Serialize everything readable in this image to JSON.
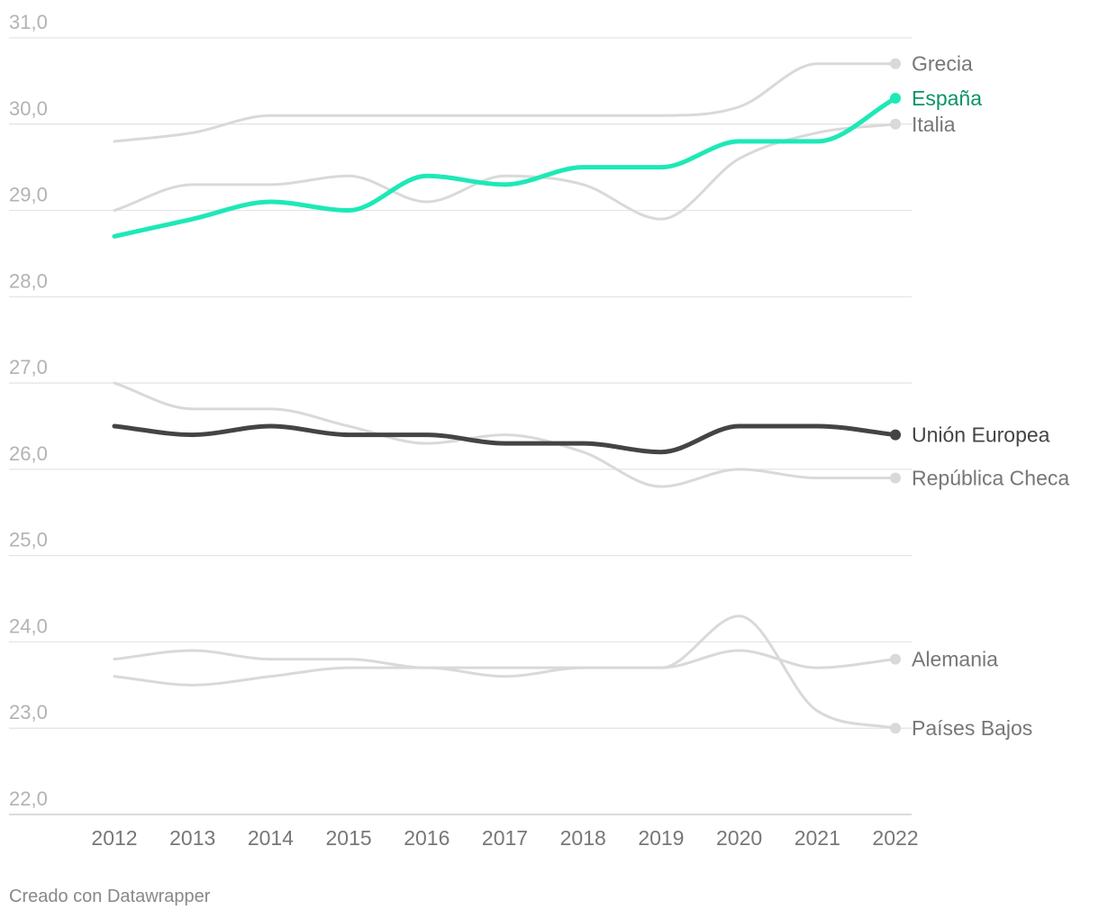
{
  "chart_data": {
    "type": "line",
    "x": [
      "2012",
      "2013",
      "2014",
      "2015",
      "2016",
      "2017",
      "2018",
      "2019",
      "2020",
      "2021",
      "2022"
    ],
    "yticks": [
      "22,0",
      "23,0",
      "24,0",
      "25,0",
      "26,0",
      "27,0",
      "28,0",
      "29,0",
      "30,0",
      "31,0"
    ],
    "ylim": [
      22,
      31
    ],
    "grid": true,
    "series": [
      {
        "name": "Grecia",
        "color": "#d9d9d9",
        "label_color": "#777777",
        "emphasis": false,
        "values": [
          29.8,
          29.9,
          30.1,
          30.1,
          30.1,
          30.1,
          30.1,
          30.1,
          30.2,
          30.7,
          30.7
        ]
      },
      {
        "name": "Italia",
        "color": "#d9d9d9",
        "label_color": "#777777",
        "emphasis": false,
        "values": [
          29.0,
          29.3,
          29.3,
          29.4,
          29.1,
          29.4,
          29.3,
          28.9,
          29.6,
          29.9,
          30.0
        ]
      },
      {
        "name": "República Checa",
        "color": "#d9d9d9",
        "label_color": "#777777",
        "emphasis": false,
        "values": [
          27.0,
          26.7,
          26.7,
          26.5,
          26.3,
          26.4,
          26.2,
          25.8,
          26.0,
          25.9,
          25.9
        ]
      },
      {
        "name": "Alemania",
        "color": "#d9d9d9",
        "label_color": "#777777",
        "emphasis": false,
        "values": [
          23.8,
          23.9,
          23.8,
          23.8,
          23.7,
          23.7,
          23.7,
          23.7,
          23.9,
          23.7,
          23.8
        ]
      },
      {
        "name": "Países Bajos",
        "color": "#d9d9d9",
        "label_color": "#777777",
        "emphasis": false,
        "values": [
          23.6,
          23.5,
          23.6,
          23.7,
          23.7,
          23.6,
          23.7,
          23.7,
          24.3,
          23.2,
          23.0
        ]
      },
      {
        "name": "Unión Europea",
        "color": "#444444",
        "label_color": "#444444",
        "emphasis": true,
        "values": [
          26.5,
          26.4,
          26.5,
          26.4,
          26.4,
          26.3,
          26.3,
          26.2,
          26.5,
          26.5,
          26.4
        ]
      },
      {
        "name": "España",
        "color": "#1de9b6",
        "label_color": "#0b9466",
        "emphasis": true,
        "values": [
          28.7,
          28.9,
          29.1,
          29.0,
          29.4,
          29.3,
          29.5,
          29.5,
          29.8,
          29.8,
          30.3
        ]
      }
    ]
  },
  "footer": {
    "credit": "Creado con Datawrapper"
  }
}
